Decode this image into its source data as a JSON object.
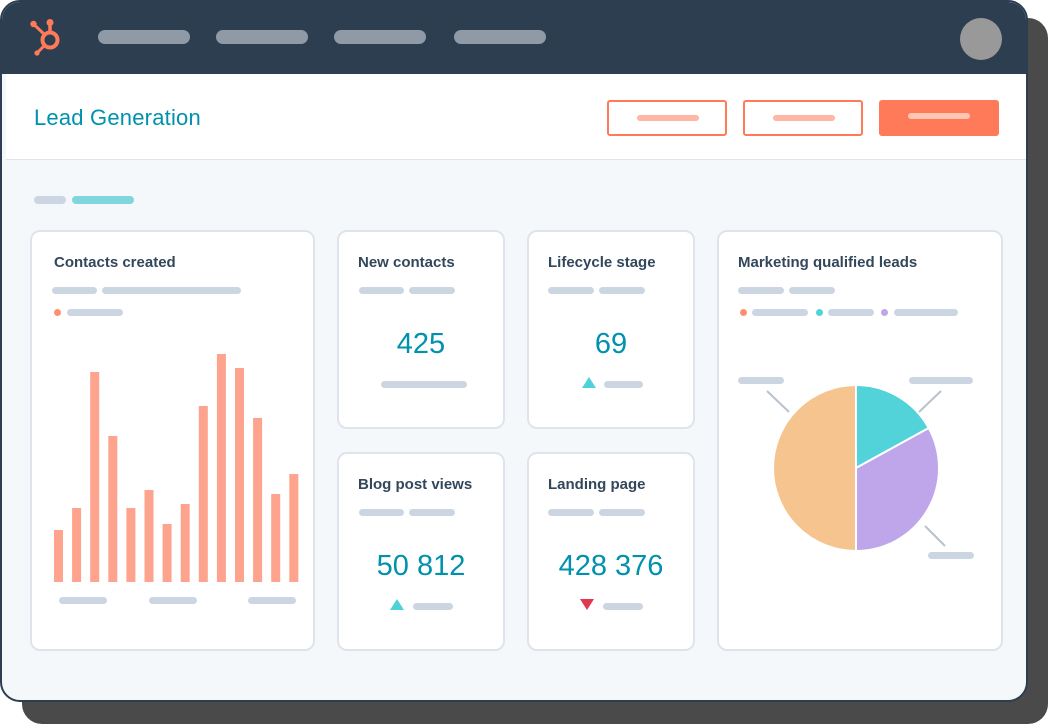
{
  "page_title": "Lead Generation",
  "colors": {
    "topbar": "#2d3e50",
    "accent_orange": "#ff7a59",
    "title_teal": "#0091ae",
    "bar_salmon": "#fea38e",
    "pie_peach": "#f5c48f",
    "pie_teal": "#51d3d9",
    "pie_purple": "#bfa6ea",
    "up_arrow": "#4fd1d9",
    "down_arrow": "#e2384f"
  },
  "icons": {
    "logo": "hubspot-sprocket-icon",
    "avatar": "user-avatar",
    "trend_up": "triangle-up-icon",
    "trend_down": "triangle-down-icon"
  },
  "cards": {
    "contacts_created": {
      "title": "Contacts created"
    },
    "new_contacts": {
      "title": "New contacts",
      "value": "425"
    },
    "lifecycle_stage": {
      "title": "Lifecycle stage",
      "value": "69",
      "trend": "up"
    },
    "blog_post_views": {
      "title": "Blog post views",
      "value": "50 812",
      "trend": "up"
    },
    "landing_page": {
      "title": "Landing page",
      "value": "428 376",
      "trend": "down"
    },
    "mql": {
      "title": "Marketing qualified leads"
    }
  },
  "chart_data": [
    {
      "type": "bar",
      "title": "Contacts created",
      "values": [
        26,
        37,
        105,
        73,
        37,
        46,
        29,
        39,
        88,
        114,
        107,
        82,
        44,
        54
      ],
      "ylim": [
        0,
        120
      ]
    },
    {
      "type": "pie",
      "title": "Marketing qualified leads",
      "slices": [
        {
          "value": 17,
          "color": "#51d3d9"
        },
        {
          "value": 33,
          "color": "#bfa6ea"
        },
        {
          "value": 50,
          "color": "#f5c48f"
        }
      ]
    }
  ]
}
